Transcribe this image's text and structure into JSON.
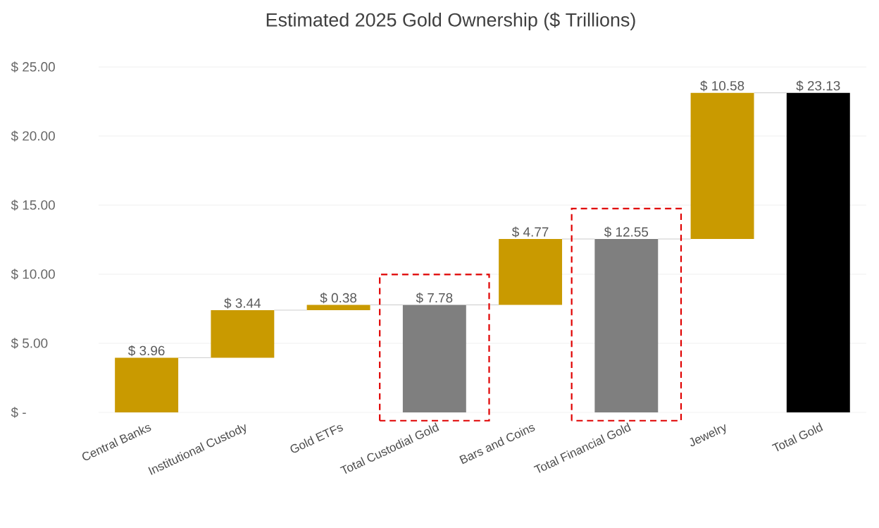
{
  "chart_data": {
    "type": "bar",
    "title": "Estimated 2025 Gold Ownership ($ Trillions)",
    "categories": [
      "Central Banks",
      "Institutional Custody",
      "Gold ETFs",
      "Total Custodial Gold",
      "Bars and Coins",
      "Total Financial Gold",
      "Jewelry",
      "Total Gold"
    ],
    "values": [
      3.96,
      3.44,
      0.38,
      7.78,
      4.77,
      12.55,
      10.58,
      23.13
    ],
    "base": [
      0,
      3.96,
      7.4,
      0,
      7.78,
      0,
      12.55,
      0
    ],
    "colors": [
      "#c99a00",
      "#c99a00",
      "#c99a00",
      "#7f7f7f",
      "#c99a00",
      "#7f7f7f",
      "#c99a00",
      "#000000"
    ],
    "value_labels": [
      "$ 3.96",
      "$ 3.44",
      "$ 0.38",
      "$ 7.78",
      "$ 4.77",
      "$ 12.55",
      "$ 10.58",
      "$ 23.13"
    ],
    "ylim": [
      0,
      25
    ],
    "yticks": [
      {
        "value": 0,
        "label": "$ -"
      },
      {
        "value": 5,
        "label": "$ 5.00"
      },
      {
        "value": 10,
        "label": "$ 10.00"
      },
      {
        "value": 15,
        "label": "$ 15.00"
      },
      {
        "value": 20,
        "label": "$ 20.00"
      },
      {
        "value": 25,
        "label": "$ 25.00"
      }
    ],
    "grid": "y"
  }
}
